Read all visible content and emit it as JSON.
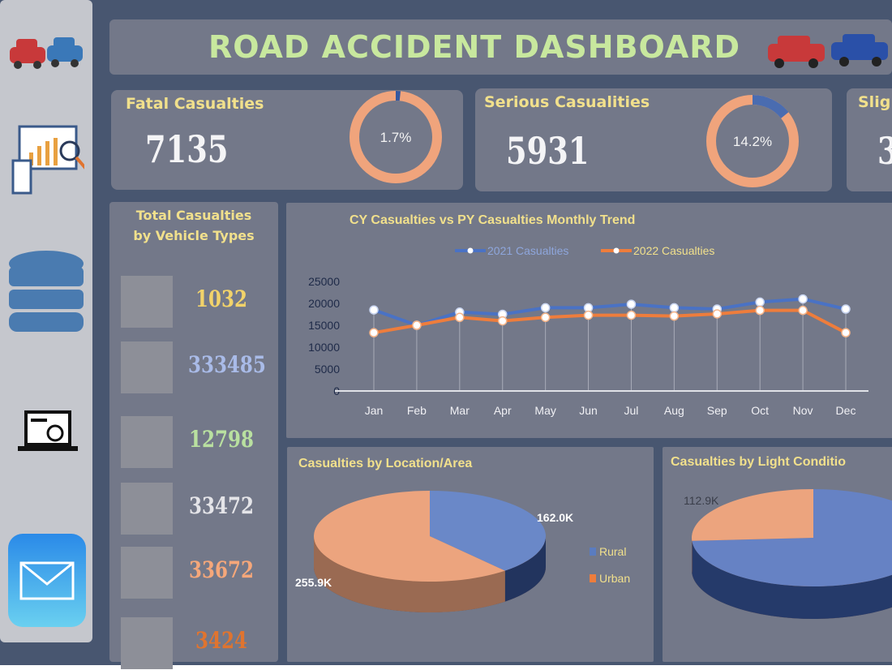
{
  "header": {
    "title": "ROAD ACCIDENT DASHBOARD"
  },
  "sidebar": {
    "items": [
      {
        "icon": "cars-icon"
      },
      {
        "icon": "analytics-icon"
      },
      {
        "icon": "database-icon"
      },
      {
        "icon": "speedometer-laptop-icon"
      },
      {
        "icon": "mail-icon"
      }
    ]
  },
  "kpis": [
    {
      "label": "Fatal Casualties",
      "value": "7135",
      "pct_label": "1.7%",
      "pct": 1.7
    },
    {
      "label": "Serious Casualities",
      "value": "5931",
      "pct_label": "14.2%",
      "pct": 14.2
    },
    {
      "label": "Slig",
      "value": "3"
    }
  ],
  "vehicles": {
    "title_line1": "Total Casualties",
    "title_line2": "by Vehicle Types",
    "items": [
      {
        "icon": "tractor-icon",
        "value": "1032",
        "color": "#f2d36a"
      },
      {
        "icon": "car-icon",
        "value": "333485",
        "color": "#a9bbe8"
      },
      {
        "icon": "bus-icon",
        "value": "12798",
        "color": "#b9e0a0"
      },
      {
        "icon": "van-icon",
        "value": "33472",
        "color": "#e4e4e8"
      },
      {
        "icon": "motorbike-icon",
        "value": "33672",
        "color": "#f5a77a"
      },
      {
        "icon": "clipboard-icon",
        "value": "3424",
        "color": "#e0742f"
      }
    ]
  },
  "colors": {
    "accent_yellow": "#f1e08c",
    "blue": "#4a72c4",
    "orange": "#ee7d3c",
    "panel": "#737889",
    "background": "#485670"
  },
  "chart_data": [
    {
      "type": "line",
      "title": "CY Casualties vs PY Casualties Monthly Trend",
      "categories": [
        "Jan",
        "Feb",
        "Mar",
        "Apr",
        "May",
        "Jun",
        "Jul",
        "Aug",
        "Sep",
        "Oct",
        "Nov",
        "Dec"
      ],
      "series": [
        {
          "name": "2021 Casualties",
          "color": "#4a72c4",
          "values": [
            18500,
            15000,
            18000,
            17500,
            19000,
            19000,
            19800,
            19000,
            18700,
            20300,
            21000,
            18700
          ]
        },
        {
          "name": "2022 Casualties",
          "color": "#ee7d3c",
          "values": [
            13300,
            15000,
            16800,
            16000,
            16800,
            17300,
            17300,
            17100,
            17600,
            18400,
            18400,
            13300
          ]
        }
      ],
      "yticks": [
        "0",
        "5000",
        "10000",
        "15000",
        "20000",
        "25000"
      ],
      "ylim": [
        0,
        25000
      ],
      "legend": "top",
      "grid": "vertical drop lines"
    },
    {
      "type": "pie",
      "title": "Casualties by Location/Area",
      "categories": [
        "Rural",
        "Urban"
      ],
      "values": [
        162.0,
        255.9
      ],
      "labels": [
        "162.0K",
        "255.9K"
      ],
      "unit": "K",
      "legend": "right"
    },
    {
      "type": "pie",
      "title": "Casualties by Light Conditio",
      "labels": [
        "112.9K"
      ],
      "values": [
        112.9
      ],
      "unit": "K"
    }
  ]
}
